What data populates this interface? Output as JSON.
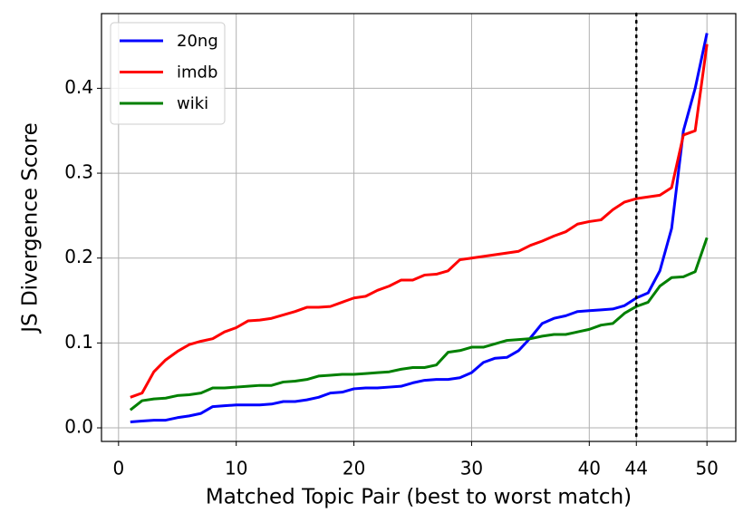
{
  "chart_data": {
    "type": "line",
    "xlabel": "Matched Topic Pair (best to worst match)",
    "ylabel": "JS Divergence Score",
    "x": [
      1,
      2,
      3,
      4,
      5,
      6,
      7,
      8,
      9,
      10,
      11,
      12,
      13,
      14,
      15,
      16,
      17,
      18,
      19,
      20,
      21,
      22,
      23,
      24,
      25,
      26,
      27,
      28,
      29,
      30,
      31,
      32,
      33,
      34,
      35,
      36,
      37,
      38,
      39,
      40,
      41,
      42,
      43,
      44,
      45,
      46,
      47,
      48,
      49,
      50
    ],
    "series": [
      {
        "name": "20ng",
        "color": "#0000ff",
        "values": [
          0.007,
          0.008,
          0.009,
          0.009,
          0.012,
          0.014,
          0.017,
          0.025,
          0.026,
          0.027,
          0.027,
          0.027,
          0.028,
          0.031,
          0.031,
          0.033,
          0.036,
          0.041,
          0.042,
          0.046,
          0.047,
          0.047,
          0.048,
          0.049,
          0.053,
          0.056,
          0.057,
          0.057,
          0.059,
          0.065,
          0.077,
          0.082,
          0.083,
          0.091,
          0.106,
          0.123,
          0.129,
          0.132,
          0.137,
          0.138,
          0.139,
          0.14,
          0.144,
          0.153,
          0.159,
          0.185,
          0.235,
          0.35,
          0.4,
          0.465
        ]
      },
      {
        "name": "imdb",
        "color": "#ff0000",
        "values": [
          0.036,
          0.041,
          0.066,
          0.08,
          0.09,
          0.098,
          0.102,
          0.105,
          0.113,
          0.118,
          0.126,
          0.127,
          0.129,
          0.133,
          0.137,
          0.142,
          0.142,
          0.143,
          0.148,
          0.153,
          0.155,
          0.162,
          0.167,
          0.174,
          0.174,
          0.18,
          0.181,
          0.185,
          0.198,
          0.2,
          0.202,
          0.204,
          0.206,
          0.208,
          0.215,
          0.22,
          0.226,
          0.231,
          0.24,
          0.243,
          0.245,
          0.257,
          0.266,
          0.27,
          0.272,
          0.274,
          0.283,
          0.345,
          0.35,
          0.452
        ]
      },
      {
        "name": "wiki",
        "color": "#008000",
        "values": [
          0.021,
          0.032,
          0.034,
          0.035,
          0.038,
          0.039,
          0.041,
          0.047,
          0.047,
          0.048,
          0.049,
          0.05,
          0.05,
          0.054,
          0.055,
          0.057,
          0.061,
          0.062,
          0.063,
          0.063,
          0.064,
          0.065,
          0.066,
          0.069,
          0.071,
          0.071,
          0.074,
          0.089,
          0.091,
          0.095,
          0.095,
          0.099,
          0.103,
          0.104,
          0.105,
          0.108,
          0.11,
          0.11,
          0.113,
          0.116,
          0.121,
          0.123,
          0.135,
          0.143,
          0.148,
          0.167,
          0.177,
          0.178,
          0.184,
          0.224
        ]
      }
    ],
    "xlim": [
      -1.45,
      52.45
    ],
    "ylim": [
      -0.016,
      0.488
    ],
    "xticks": [
      0,
      10,
      20,
      30,
      40,
      44,
      50
    ],
    "yticks": [
      {
        "value": 0,
        "label": "0.0"
      },
      0.1,
      0.2,
      0.3,
      0.4
    ],
    "vlines": [
      44
    ],
    "grid": true,
    "legend": "upper left"
  }
}
